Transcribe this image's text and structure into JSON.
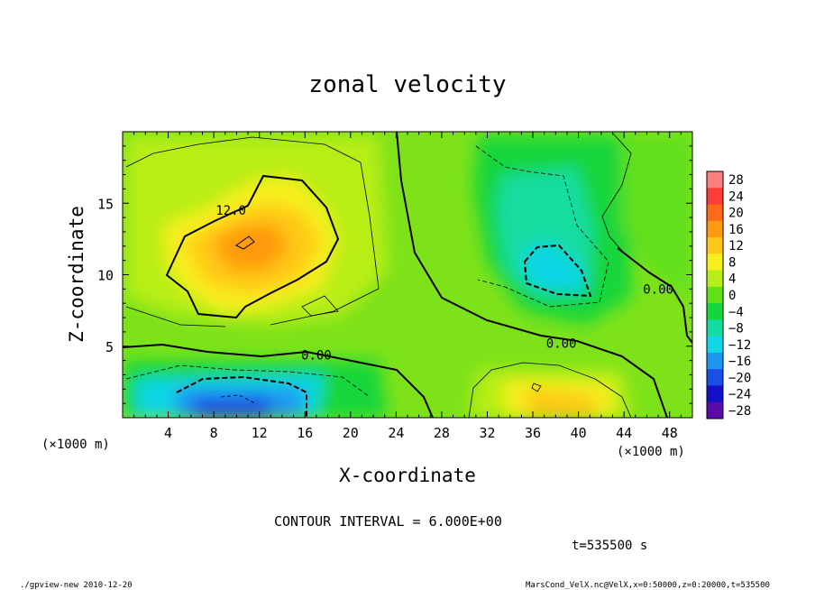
{
  "chart_data": {
    "type": "contour",
    "title": "zonal velocity",
    "xlabel": "X-coordinate",
    "ylabel": "Z-coordinate",
    "x_unit_label": "(×1000 m)",
    "y_unit_label": "(×1000 m)",
    "xlim": [
      0,
      50
    ],
    "ylim": [
      0,
      20
    ],
    "x_ticks": [
      4,
      8,
      12,
      16,
      20,
      24,
      28,
      32,
      36,
      40,
      44,
      48
    ],
    "y_ticks": [
      5,
      10,
      15
    ],
    "contour_interval_text": "CONTOUR INTERVAL = 6.000E+00",
    "contour_labels": [
      {
        "text": "12.0",
        "x": 9.5,
        "z": 14.5
      },
      {
        "text": "0.00",
        "x": 17,
        "z": 4.4
      },
      {
        "text": "0.00",
        "x": 38.5,
        "z": 5.2
      },
      {
        "text": "0.00",
        "x": 47,
        "z": 9.0
      }
    ],
    "colorbar": {
      "levels": [
        28,
        24,
        20,
        16,
        12,
        8,
        4,
        0,
        -4,
        -8,
        -12,
        -16,
        -20,
        -24,
        -28
      ],
      "colors": [
        "#ff7f7f",
        "#ff3b3b",
        "#ff6a1a",
        "#ff9a10",
        "#ffc818",
        "#f7ee1e",
        "#b8ee18",
        "#62e01a",
        "#14d63a",
        "#12dca0",
        "#10d6e6",
        "#1c96f0",
        "#1a4ee6",
        "#1410c8",
        "#5a0aa8"
      ]
    },
    "time_text": "t=535500 s",
    "footer_left": "./gpview-new  2010-12-20",
    "footer_right": "MarsCond_VelX.nc@VelX,x=0:50000,z=0:20000,t=535500"
  }
}
